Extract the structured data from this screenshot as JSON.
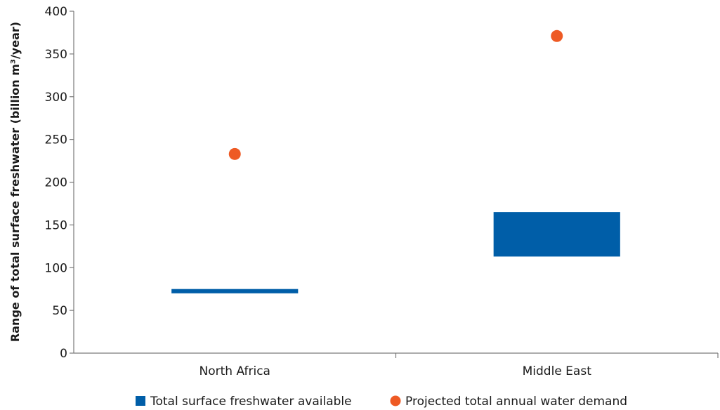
{
  "chart_data": {
    "type": "range-bar-and-scatter",
    "categories": [
      "North Africa",
      "Middle East"
    ],
    "ylabel": "Range of total surface freshwater (billion m³/year)",
    "ylim": [
      0,
      400
    ],
    "yticks": [
      0,
      50,
      100,
      150,
      200,
      250,
      300,
      350,
      400
    ],
    "grid": false,
    "legend_position": "bottom",
    "series": [
      {
        "name": "Total surface freshwater available",
        "kind": "range",
        "color": "#005ea8",
        "ranges": [
          [
            70,
            75
          ],
          [
            113,
            165
          ]
        ]
      },
      {
        "name": "Projected total annual water demand",
        "kind": "point",
        "color": "#ee5a24",
        "values": [
          233,
          371
        ]
      }
    ]
  }
}
